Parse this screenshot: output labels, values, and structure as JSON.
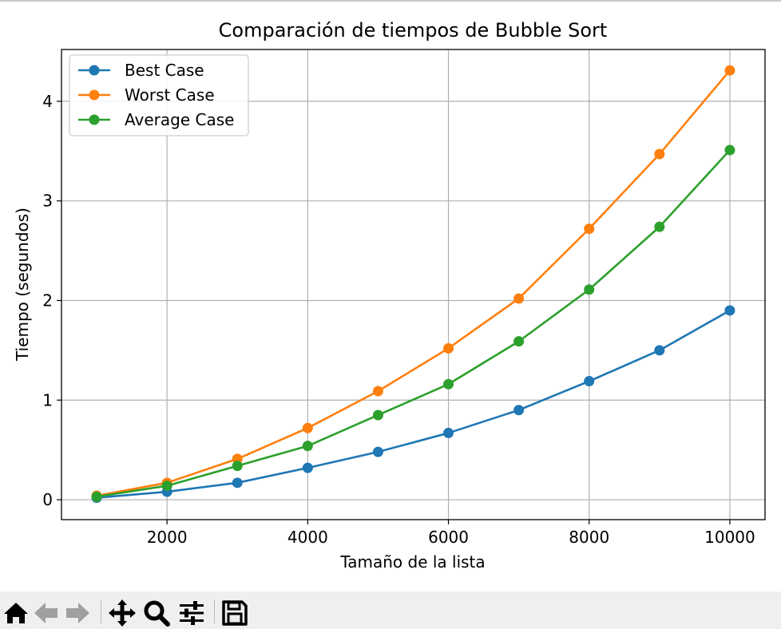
{
  "chart_data": {
    "type": "line",
    "title": "Comparación de tiempos de Bubble Sort",
    "xlabel": "Tamaño de la lista",
    "ylabel": "Tiempo (segundos)",
    "xlim": [
      500,
      10500
    ],
    "ylim": [
      -0.2,
      4.52
    ],
    "xticks": [
      2000,
      4000,
      6000,
      8000,
      10000
    ],
    "yticks": [
      0,
      1,
      2,
      3,
      4
    ],
    "grid": true,
    "legend_position": "upper-left",
    "x": [
      1000,
      2000,
      3000,
      4000,
      5000,
      6000,
      7000,
      8000,
      9000,
      10000
    ],
    "series": [
      {
        "name": "Best Case",
        "color": "#1f77b4",
        "values": [
          0.02,
          0.08,
          0.17,
          0.32,
          0.48,
          0.67,
          0.9,
          1.19,
          1.5,
          1.9
        ]
      },
      {
        "name": "Worst Case",
        "color": "#ff7f0e",
        "values": [
          0.04,
          0.17,
          0.41,
          0.72,
          1.09,
          1.52,
          2.02,
          2.72,
          3.47,
          4.31
        ]
      },
      {
        "name": "Average Case",
        "color": "#2ca02c",
        "values": [
          0.03,
          0.14,
          0.34,
          0.54,
          0.85,
          1.16,
          1.59,
          2.11,
          2.74,
          3.51
        ]
      }
    ]
  },
  "toolbar": {
    "buttons": [
      {
        "name": "home-button",
        "icon": "home-icon"
      },
      {
        "name": "back-button",
        "icon": "arrow-left-icon"
      },
      {
        "name": "forward-button",
        "icon": "arrow-right-icon"
      },
      {
        "name": "pan-button",
        "icon": "move-arrows-icon"
      },
      {
        "name": "zoom-button",
        "icon": "magnifier-icon"
      },
      {
        "name": "configure-subplots-button",
        "icon": "sliders-icon"
      },
      {
        "name": "save-button",
        "icon": "floppy-disk-icon"
      }
    ]
  }
}
